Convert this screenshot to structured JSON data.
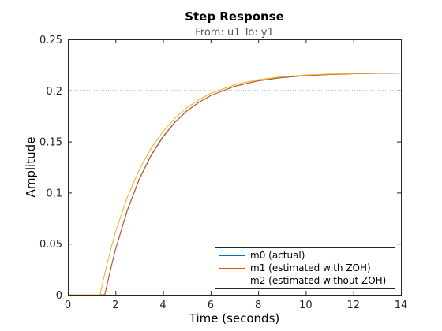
{
  "chart_data": {
    "type": "line",
    "title": "Step Response",
    "subtitle": "From: u1  To: y1",
    "xlabel": "Time (seconds)",
    "ylabel": "Amplitude",
    "xlim": [
      0,
      14
    ],
    "ylim": [
      0,
      0.25
    ],
    "xticks": [
      0,
      2,
      4,
      6,
      8,
      10,
      12,
      14
    ],
    "yticks": [
      0,
      0.05,
      0.1,
      0.15,
      0.2,
      0.25
    ],
    "xtick_labels": [
      "0",
      "2",
      "4",
      "6",
      "8",
      "10",
      "12",
      "14"
    ],
    "ytick_labels": [
      "0",
      "0.05",
      "0.1",
      "0.15",
      "0.2",
      "0.25"
    ],
    "grid": false,
    "legend_position": "bottom-right",
    "reference_line": {
      "y": 0.2,
      "style": "dotted",
      "color": "#000000"
    },
    "series": [
      {
        "name": "m0 (actual)",
        "color": "#0072BD",
        "x": [
          0,
          1.55,
          1.8,
          2.0,
          2.5,
          3.0,
          3.5,
          4.0,
          4.5,
          5.0,
          5.5,
          6.0,
          7.0,
          8.0,
          9.0,
          10.0,
          11.0,
          12.0,
          13.0,
          14.0
        ],
        "y": [
          0,
          0,
          0.0255,
          0.0444,
          0.0831,
          0.1133,
          0.1367,
          0.1549,
          0.169,
          0.1799,
          0.1884,
          0.195,
          0.204,
          0.2094,
          0.2126,
          0.2146,
          0.2157,
          0.2164,
          0.2168,
          0.2171
        ]
      },
      {
        "name": "m1 (estimated with ZOH)",
        "color": "#D95319",
        "x": [
          0,
          1.55,
          1.8,
          2.0,
          2.5,
          3.0,
          3.5,
          4.0,
          4.5,
          5.0,
          5.5,
          6.0,
          7.0,
          8.0,
          9.0,
          10.0,
          11.0,
          12.0,
          13.0,
          14.0
        ],
        "y": [
          0,
          0,
          0.0253,
          0.0441,
          0.0826,
          0.1128,
          0.1362,
          0.1545,
          0.1687,
          0.1797,
          0.1883,
          0.195,
          0.2041,
          0.2095,
          0.2127,
          0.2146,
          0.2157,
          0.2164,
          0.2168,
          0.2171
        ]
      },
      {
        "name": "m2 (estimated without ZOH)",
        "color": "#EDB120",
        "x": [
          0,
          1.35,
          1.6,
          1.8,
          2.0,
          2.5,
          3.0,
          3.5,
          4.0,
          4.5,
          5.0,
          5.5,
          6.0,
          7.0,
          8.0,
          9.0,
          10.0,
          11.0,
          12.0,
          13.0,
          14.0
        ],
        "y": [
          0,
          0,
          0.0255,
          0.0444,
          0.0614,
          0.0955,
          0.1224,
          0.1435,
          0.1599,
          0.1729,
          0.183,
          0.1909,
          0.1971,
          0.2056,
          0.2106,
          0.2135,
          0.2152,
          0.2161,
          0.2167,
          0.217,
          0.2172
        ]
      }
    ]
  }
}
